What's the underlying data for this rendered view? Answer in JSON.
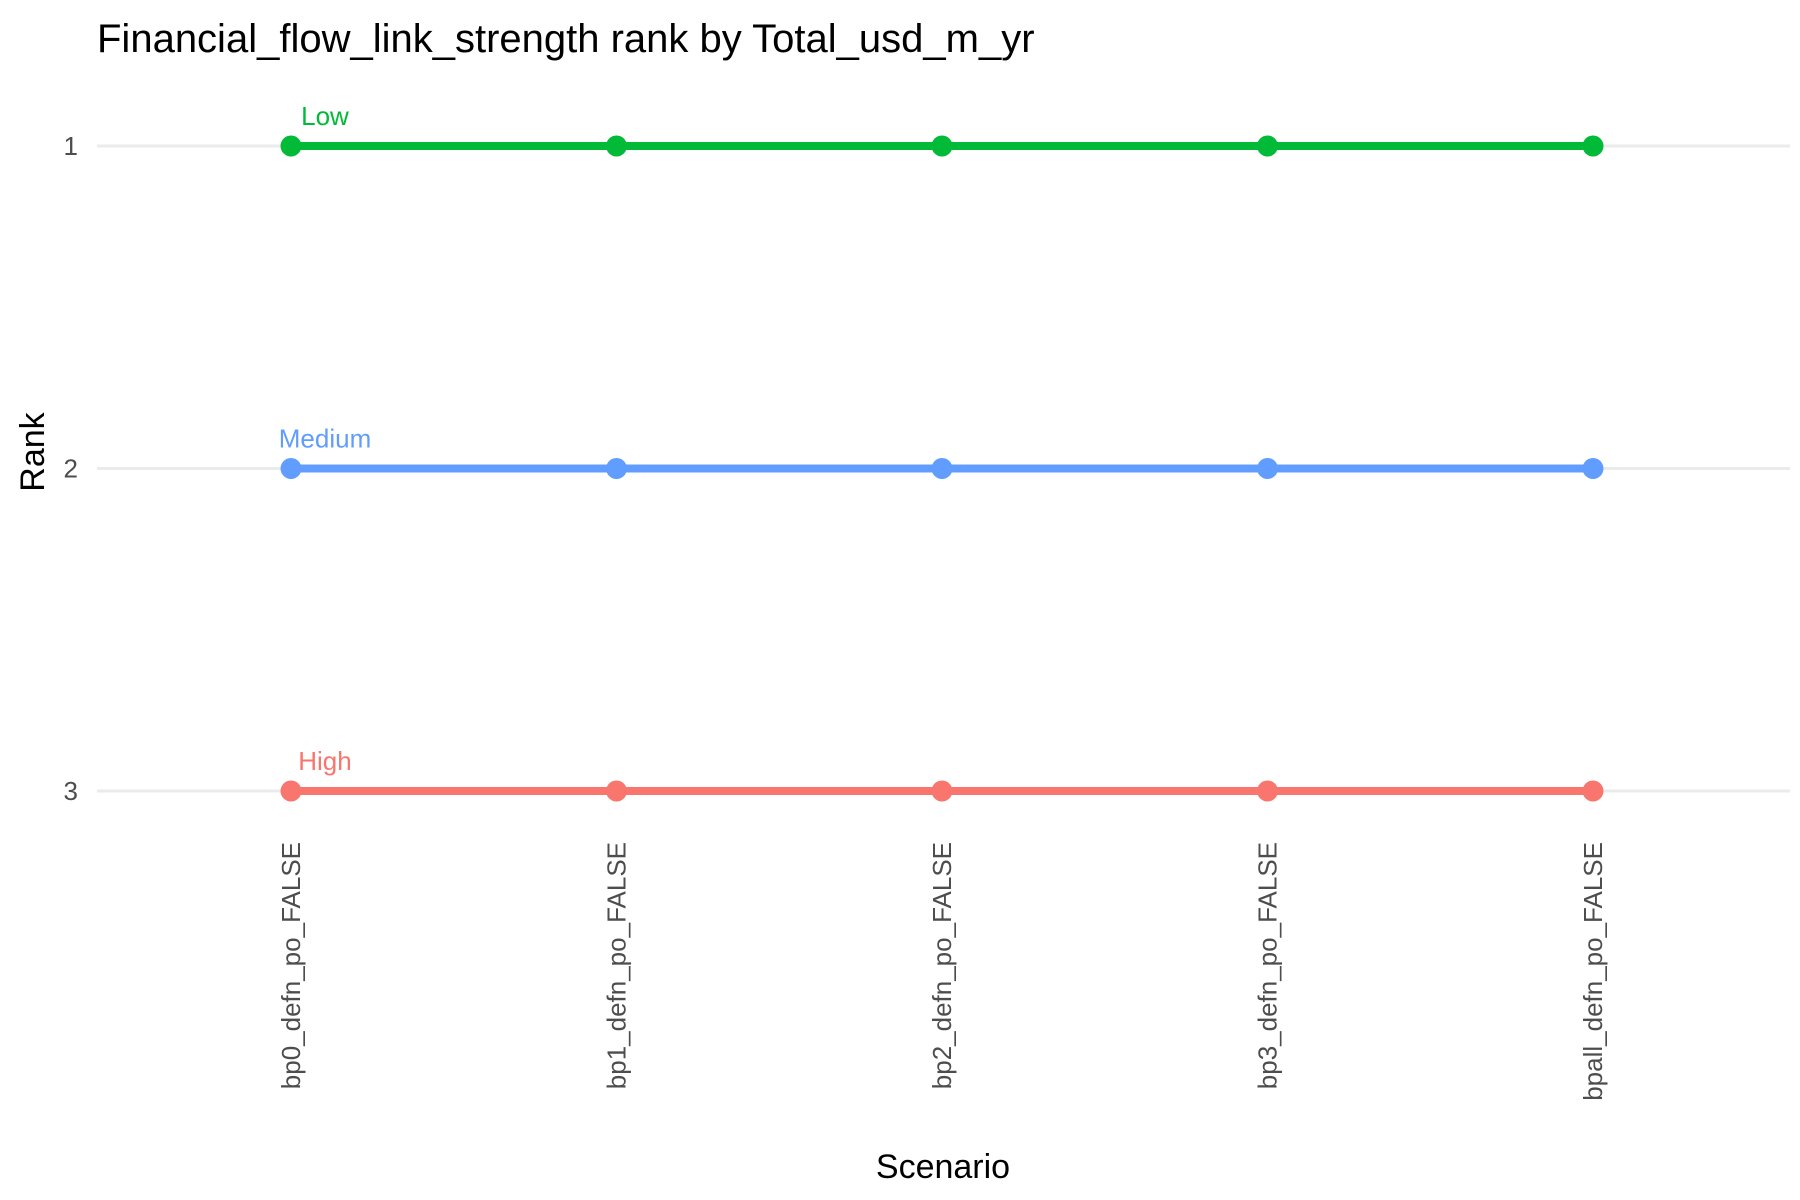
{
  "chart_data": {
    "type": "line",
    "title": "Financial_flow_link_strength rank by Total_usd_m_yr",
    "xlabel": "Scenario",
    "ylabel": "Rank",
    "categories": [
      "bp0_defn_po_FALSE",
      "bp1_defn_po_FALSE",
      "bp2_defn_po_FALSE",
      "bp3_defn_po_FALSE",
      "bpall_defn_po_FALSE"
    ],
    "y_ticks": [
      "1",
      "2",
      "3"
    ],
    "ylim": [
      3,
      1
    ],
    "y_reversed": true,
    "grid": "horizontal major only",
    "legend": "none (direct labels at first point)",
    "series": [
      {
        "name": "Low",
        "color": "#00BA38",
        "values": [
          1,
          1,
          1,
          1,
          1
        ]
      },
      {
        "name": "Medium",
        "color": "#619CFF",
        "values": [
          2,
          2,
          2,
          2,
          2
        ]
      },
      {
        "name": "High",
        "color": "#F8766D",
        "values": [
          3,
          3,
          3,
          3,
          3
        ]
      }
    ]
  }
}
